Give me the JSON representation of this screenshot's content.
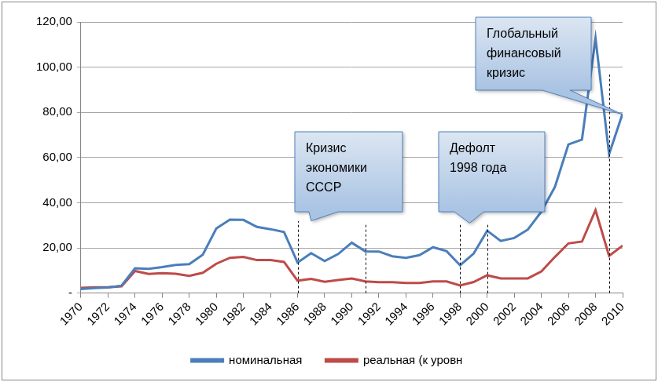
{
  "chart_data": {
    "type": "line",
    "x": [
      1970,
      1971,
      1972,
      1973,
      1974,
      1975,
      1976,
      1977,
      1978,
      1979,
      1980,
      1981,
      1982,
      1983,
      1984,
      1985,
      1986,
      1987,
      1988,
      1989,
      1990,
      1991,
      1992,
      1993,
      1994,
      1995,
      1996,
      1997,
      1998,
      1999,
      2000,
      2001,
      2002,
      2003,
      2004,
      2005,
      2006,
      2007,
      2008,
      2009,
      2010
    ],
    "xlim": [
      1970,
      2010
    ],
    "xticks": [
      1970,
      1972,
      1974,
      1976,
      1978,
      1980,
      1982,
      1984,
      1986,
      1988,
      1990,
      1992,
      1994,
      1996,
      1998,
      2000,
      2002,
      2004,
      2006,
      2008,
      2010
    ],
    "ylim": [
      0,
      120
    ],
    "yticks": [
      {
        "value": 0,
        "label": "-"
      },
      {
        "value": 20,
        "label": "20,00"
      },
      {
        "value": 40,
        "label": "40,00"
      },
      {
        "value": 60,
        "label": "60,00"
      },
      {
        "value": 80,
        "label": "80,00"
      },
      {
        "value": 100,
        "label": "100,00"
      },
      {
        "value": 120,
        "label": "120,00"
      }
    ],
    "grid": true,
    "legend": "bottom",
    "marker": "none",
    "series": [
      {
        "name": "номинальная",
        "color": "#4a7ebb",
        "values": [
          1.8,
          2.2,
          2.5,
          3.3,
          11,
          10.7,
          11.5,
          12.5,
          12.8,
          17,
          28.6,
          32.5,
          32.4,
          29.3,
          28.3,
          27,
          13.5,
          17.7,
          14.2,
          17.3,
          22.3,
          18.5,
          18.4,
          16.3,
          15.6,
          16.8,
          20.3,
          18.6,
          12.3,
          17.5,
          27.6,
          23.1,
          24.4,
          28.1,
          36,
          47,
          65.8,
          68,
          112.8,
          61.5,
          79.5
        ]
      },
      {
        "name": "реальная (к уровн",
        "color": "#be4b48",
        "values": [
          2.3,
          2.6,
          2.6,
          3,
          9.8,
          8.5,
          8.8,
          8.6,
          7.6,
          9,
          13,
          15.6,
          16,
          14.6,
          14.6,
          13.8,
          5.5,
          6.3,
          5,
          5.8,
          6.5,
          5.2,
          4.8,
          4.8,
          4.5,
          4.5,
          5.2,
          5.2,
          3.4,
          4.9,
          7.9,
          6.5,
          6.5,
          6.5,
          9.6,
          16,
          22,
          22.8,
          36.7,
          16.5,
          21
        ]
      }
    ],
    "annotations": [
      {
        "lines": [
          "Кризис",
          "экономики",
          "СССР"
        ],
        "x": 1987,
        "y": 32
      },
      {
        "lines": [
          "Дефолт",
          "1998 года"
        ],
        "x": 1998.7,
        "y": 31
      },
      {
        "lines": [
          "Глобальный",
          "финансовый",
          "кризис"
        ],
        "x": 2010,
        "y": 79
      }
    ],
    "vlines": [
      1986,
      1991,
      1998,
      2000,
      2009
    ]
  }
}
